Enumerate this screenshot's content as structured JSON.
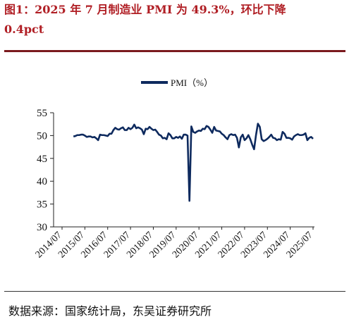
{
  "header": {
    "title_line1": "图1：2025 年 7 月制造业 PMI 为 49.3%，环比下降",
    "title_line2": "0.4pct"
  },
  "footer": {
    "source": "数据来源：国家统计局，东吴证券研究所"
  },
  "colors": {
    "series": "#0e2a5e",
    "title": "#b01e24"
  },
  "chart_data": {
    "type": "line",
    "title": "图1：2025 年 7 月制造业 PMI 为 49.3%，环比下降0.4pct",
    "legend": "top-center",
    "grid": false,
    "ylim": [
      30,
      55
    ],
    "yticks": [
      30,
      35,
      40,
      45,
      50,
      55
    ],
    "xticks": [
      "2014/07",
      "2015/07",
      "2016/07",
      "2017/07",
      "2018/07",
      "2019/07",
      "2020/07",
      "2021/07",
      "2022/07",
      "2023/07",
      "2024/07",
      "2025/07"
    ],
    "series": [
      {
        "name": "PMI（%）",
        "x_start": "2015/01",
        "values": [
          49.8,
          49.9,
          50.1,
          50.1,
          50.2,
          50.2,
          50.0,
          49.7,
          49.8,
          49.8,
          49.6,
          49.7,
          49.4,
          49.0,
          50.2,
          50.1,
          50.1,
          50.0,
          49.9,
          50.4,
          50.4,
          51.2,
          51.7,
          51.4,
          51.3,
          51.6,
          51.8,
          51.2,
          51.2,
          51.7,
          51.4,
          51.7,
          52.4,
          51.6,
          51.8,
          51.6,
          51.3,
          50.3,
          51.5,
          51.4,
          51.9,
          51.5,
          51.2,
          51.3,
          50.8,
          50.2,
          50.0,
          49.4,
          49.5,
          49.2,
          50.5,
          50.1,
          49.4,
          49.4,
          49.7,
          49.5,
          49.8,
          49.3,
          50.2,
          50.2,
          50.0,
          35.7,
          52.0,
          50.8,
          50.6,
          50.9,
          51.1,
          51.0,
          51.5,
          51.4,
          52.1,
          51.9,
          51.3,
          50.6,
          51.9,
          51.1,
          51.0,
          50.9,
          50.4,
          50.1,
          49.6,
          49.2,
          50.1,
          50.3,
          50.1,
          50.2,
          49.5,
          47.4,
          49.6,
          50.2,
          49.0,
          49.4,
          50.1,
          49.2,
          48.0,
          47.0,
          50.1,
          52.6,
          51.9,
          49.2,
          48.8,
          49.0,
          49.3,
          49.7,
          50.2,
          49.5,
          49.4,
          49.0,
          49.2,
          49.1,
          50.8,
          50.4,
          49.5,
          49.5,
          49.4,
          49.1,
          49.8,
          50.1,
          50.3,
          50.1,
          50.1,
          50.2,
          50.5,
          49.0,
          49.5,
          49.7,
          49.3
        ]
      }
    ]
  }
}
